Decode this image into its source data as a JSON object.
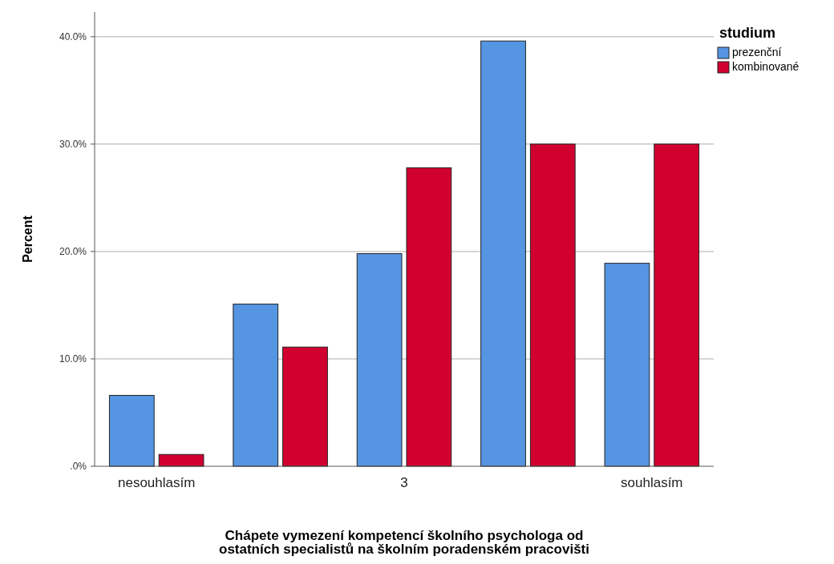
{
  "chart_data": {
    "type": "bar",
    "xlabel": "Chápete vymezení kompetencí školního psychologa od\nostatních specialistů na školním poradenském pracovišti",
    "ylabel": "Percent",
    "legend_title": "studium",
    "categories": [
      "nesouhlasím",
      null,
      "3",
      null,
      "souhlasím"
    ],
    "series": [
      {
        "name": "prezenční",
        "color": "#5595e2",
        "values": [
          6.6,
          15.1,
          19.8,
          39.6,
          18.9
        ]
      },
      {
        "name": "kombinované",
        "color": "#d0012f",
        "values": [
          1.1,
          11.1,
          27.8,
          30.0,
          30.0
        ]
      }
    ],
    "ylim": [
      0,
      42.3
    ],
    "yticks": [
      {
        "value": 0,
        "label": ".0%"
      },
      {
        "value": 10,
        "label": "10.0%"
      },
      {
        "value": 20,
        "label": "20.0%"
      },
      {
        "value": 30,
        "label": "30.0%"
      },
      {
        "value": 40,
        "label": "40.0%"
      }
    ],
    "grid": "y",
    "legend": "top right"
  }
}
